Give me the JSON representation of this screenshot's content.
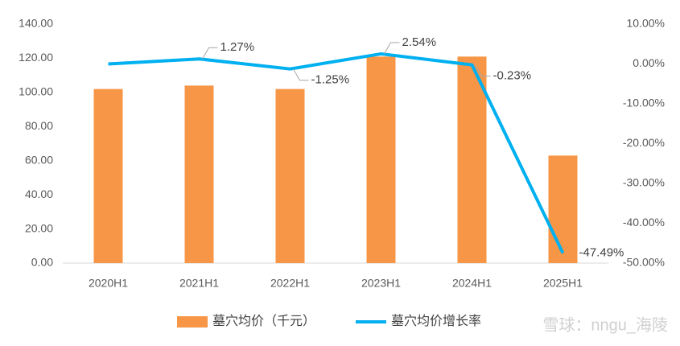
{
  "chart_data": {
    "type": "bar",
    "categories": [
      "2020H1",
      "2021H1",
      "2022H1",
      "2023H1",
      "2024H1",
      "2025H1"
    ],
    "series": [
      {
        "name": "墓穴均价（千元）",
        "type": "bar",
        "color": "#f79646",
        "values": [
          102,
          104,
          102,
          121,
          121,
          63
        ]
      },
      {
        "name": "墓穴均价增长率",
        "type": "line",
        "axis": "y2",
        "color": "#00b0f0",
        "values": [
          0,
          1.27,
          -1.25,
          2.54,
          -0.23,
          -47.49
        ],
        "value_labels": [
          null,
          "1.27%",
          "-1.25%",
          "2.54%",
          "-0.23%",
          "-47.49%"
        ]
      }
    ],
    "ylim": [
      0,
      140
    ],
    "yticks": [
      {
        "value": 0,
        "label": "0.00"
      },
      {
        "value": 20,
        "label": "20.00"
      },
      {
        "value": 40,
        "label": "40.00"
      },
      {
        "value": 60,
        "label": "60.00"
      },
      {
        "value": 80,
        "label": "80.00"
      },
      {
        "value": 100,
        "label": "100.00"
      },
      {
        "value": 120,
        "label": "120.00"
      },
      {
        "value": 140,
        "label": "140.00"
      }
    ],
    "y2lim": [
      -50,
      10
    ],
    "y2ticks": [
      {
        "value": -50,
        "label": "-50.00%"
      },
      {
        "value": -40,
        "label": "-40.00%"
      },
      {
        "value": -30,
        "label": "-30.00%"
      },
      {
        "value": -20,
        "label": "-20.00%"
      },
      {
        "value": -10,
        "label": "-10.00%"
      },
      {
        "value": 0,
        "label": "0.00%"
      },
      {
        "value": 10,
        "label": "10.00%"
      }
    ],
    "grid": false,
    "legend": "bottom",
    "watermark": "雪球：nngu_海陵"
  }
}
